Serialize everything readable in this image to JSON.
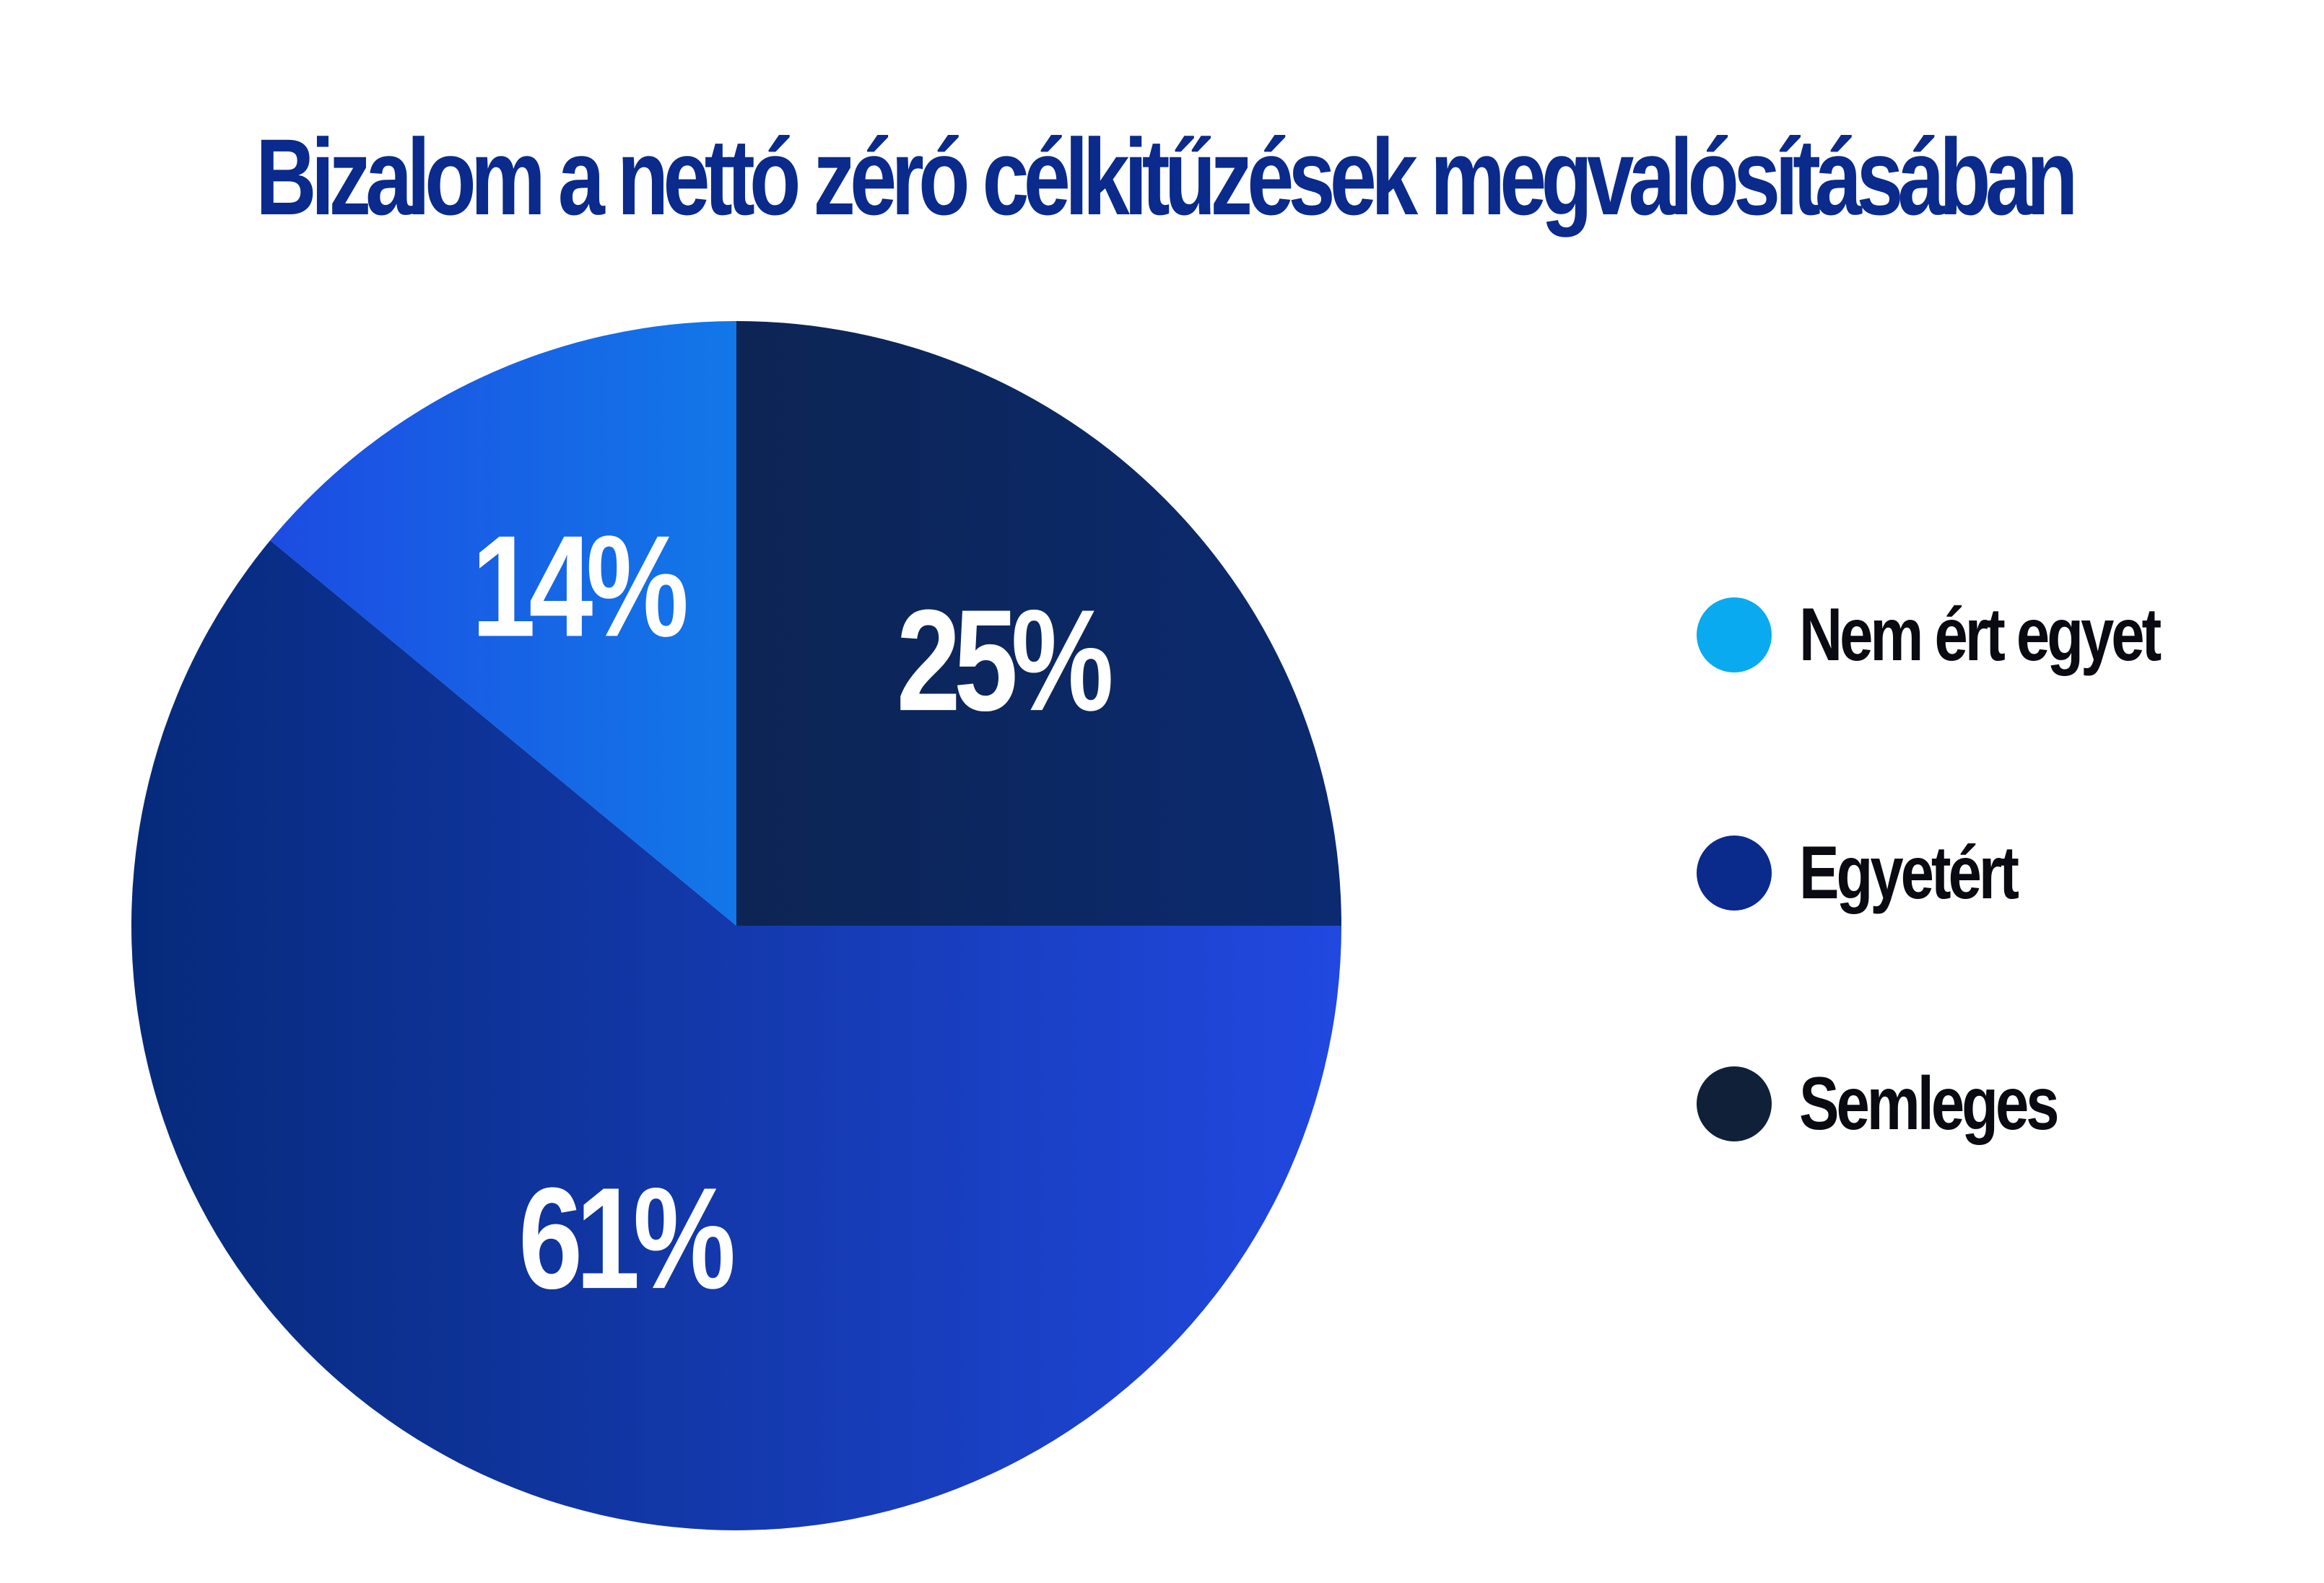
{
  "chart_data": {
    "type": "pie",
    "title": "Bizalom a nettó zéró célkitűzések megvalósításában",
    "slices": [
      {
        "name": "Semleges",
        "value": 25,
        "label": "25%",
        "color": "#0f2038",
        "gradient": [
          "#0f2038",
          "#0b2a70"
        ]
      },
      {
        "name": "Egyetért",
        "value": 61,
        "label": "61%",
        "color": "#0a2a8c",
        "gradient": [
          "#062a7a",
          "#2148e0"
        ]
      },
      {
        "name": "Nem ért egyet",
        "value": 14,
        "label": "14%",
        "color": "#0aaaf0",
        "gradient": [
          "#1f3fe0",
          "#05b0f0"
        ]
      }
    ],
    "start_angle_deg": 0,
    "direction": "clockwise",
    "legend": {
      "position": "right",
      "items": [
        {
          "label": "Nem ért egyet",
          "color": "#0aaaf0"
        },
        {
          "label": "Egyetért",
          "color": "#0a2a8c"
        },
        {
          "label": "Semleges",
          "color": "#0f2038"
        }
      ]
    }
  }
}
